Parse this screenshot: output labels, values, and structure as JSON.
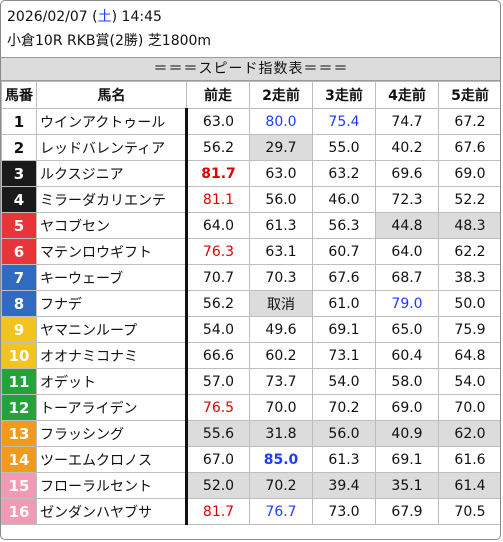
{
  "header": {
    "date": "2026/02/07",
    "weekday": "土",
    "time": "14:45",
    "race_line": "小倉10R RKB賞(2勝) 芝1800m"
  },
  "title": "＝＝＝スピード指数表＝＝＝",
  "columns": [
    "馬番",
    "馬名",
    "前走",
    "2走前",
    "3走前",
    "4走前",
    "5走前"
  ],
  "gate_colors": {
    "1": "#ffffff",
    "2": "#ffffff",
    "3": "#1a1a1a",
    "4": "#1a1a1a",
    "5": "#e8353a",
    "6": "#e8353a",
    "7": "#2f6bc0",
    "8": "#2f6bc0",
    "9": "#f2c41d",
    "10": "#f2c41d",
    "11": "#25a33a",
    "12": "#25a33a",
    "13": "#f29a1e",
    "14": "#f29a1e",
    "15": "#f29ab5",
    "16": "#f29ab5"
  },
  "rows": [
    {
      "num": "1",
      "name": "ウインアクトゥール",
      "gate": "1",
      "cells": [
        {
          "v": "63.0"
        },
        {
          "v": "80.0",
          "c": "blue"
        },
        {
          "v": "75.4",
          "c": "blue"
        },
        {
          "v": "74.7"
        },
        {
          "v": "67.2"
        }
      ]
    },
    {
      "num": "2",
      "name": "レッドバレンティア",
      "gate": "2",
      "cells": [
        {
          "v": "56.2"
        },
        {
          "v": "29.7",
          "bg": "gray"
        },
        {
          "v": "55.0"
        },
        {
          "v": "40.2"
        },
        {
          "v": "67.6"
        }
      ]
    },
    {
      "num": "3",
      "name": "ルクスジニア",
      "gate": "3",
      "cells": [
        {
          "v": "81.7",
          "c": "red",
          "b": true
        },
        {
          "v": "63.0"
        },
        {
          "v": "63.2"
        },
        {
          "v": "69.6"
        },
        {
          "v": "69.0"
        }
      ]
    },
    {
      "num": "4",
      "name": "ミラーダカリエンテ",
      "gate": "4",
      "cells": [
        {
          "v": "81.1",
          "c": "red"
        },
        {
          "v": "56.0"
        },
        {
          "v": "46.0"
        },
        {
          "v": "72.3"
        },
        {
          "v": "52.2"
        }
      ]
    },
    {
      "num": "5",
      "name": "ヤコブセン",
      "gate": "5",
      "cells": [
        {
          "v": "64.0"
        },
        {
          "v": "61.3"
        },
        {
          "v": "56.3"
        },
        {
          "v": "44.8",
          "bg": "gray"
        },
        {
          "v": "48.3",
          "bg": "gray"
        }
      ]
    },
    {
      "num": "6",
      "name": "マテンロウギフト",
      "gate": "6",
      "cells": [
        {
          "v": "76.3",
          "c": "red"
        },
        {
          "v": "63.1"
        },
        {
          "v": "60.7"
        },
        {
          "v": "64.0"
        },
        {
          "v": "62.2"
        }
      ]
    },
    {
      "num": "7",
      "name": "キーウェーブ",
      "gate": "7",
      "cells": [
        {
          "v": "70.7"
        },
        {
          "v": "70.3"
        },
        {
          "v": "67.6"
        },
        {
          "v": "68.7"
        },
        {
          "v": "38.3"
        }
      ]
    },
    {
      "num": "8",
      "name": "フナデ",
      "gate": "8",
      "cells": [
        {
          "v": "56.2"
        },
        {
          "v": "取消",
          "bg": "gray"
        },
        {
          "v": "61.0"
        },
        {
          "v": "79.0",
          "c": "blue"
        },
        {
          "v": "50.0"
        }
      ]
    },
    {
      "num": "9",
      "name": "ヤマニンループ",
      "gate": "9",
      "cells": [
        {
          "v": "54.0"
        },
        {
          "v": "49.6"
        },
        {
          "v": "69.1"
        },
        {
          "v": "65.0"
        },
        {
          "v": "75.9"
        }
      ]
    },
    {
      "num": "10",
      "name": "オオナミコナミ",
      "gate": "10",
      "cells": [
        {
          "v": "66.6"
        },
        {
          "v": "60.2"
        },
        {
          "v": "73.1"
        },
        {
          "v": "60.4"
        },
        {
          "v": "64.8"
        }
      ]
    },
    {
      "num": "11",
      "name": "オデット",
      "gate": "11",
      "cells": [
        {
          "v": "57.0"
        },
        {
          "v": "73.7"
        },
        {
          "v": "54.0"
        },
        {
          "v": "58.0"
        },
        {
          "v": "54.0"
        }
      ]
    },
    {
      "num": "12",
      "name": "トーアライデン",
      "gate": "12",
      "cells": [
        {
          "v": "76.5",
          "c": "red"
        },
        {
          "v": "70.0"
        },
        {
          "v": "70.2"
        },
        {
          "v": "69.0"
        },
        {
          "v": "70.0"
        }
      ]
    },
    {
      "num": "13",
      "name": "フラッシング",
      "gate": "13",
      "cells": [
        {
          "v": "55.6",
          "bg": "gray"
        },
        {
          "v": "31.8",
          "bg": "gray"
        },
        {
          "v": "56.0",
          "bg": "gray"
        },
        {
          "v": "40.9",
          "bg": "gray"
        },
        {
          "v": "62.0",
          "bg": "gray"
        }
      ]
    },
    {
      "num": "14",
      "name": "ツーエムクロノス",
      "gate": "14",
      "cells": [
        {
          "v": "67.0"
        },
        {
          "v": "85.0",
          "c": "blue",
          "b": true
        },
        {
          "v": "61.3"
        },
        {
          "v": "69.1"
        },
        {
          "v": "61.6"
        }
      ]
    },
    {
      "num": "15",
      "name": "フローラルセント",
      "gate": "15",
      "cells": [
        {
          "v": "52.0",
          "bg": "gray"
        },
        {
          "v": "70.2",
          "bg": "gray"
        },
        {
          "v": "39.4",
          "bg": "gray"
        },
        {
          "v": "35.1",
          "bg": "gray"
        },
        {
          "v": "61.4",
          "bg": "gray"
        }
      ]
    },
    {
      "num": "16",
      "name": "ゼンダンハヤブサ",
      "gate": "16",
      "cells": [
        {
          "v": "81.7",
          "c": "red"
        },
        {
          "v": "76.7",
          "c": "blue"
        },
        {
          "v": "73.0"
        },
        {
          "v": "67.9"
        },
        {
          "v": "70.5"
        }
      ]
    }
  ]
}
